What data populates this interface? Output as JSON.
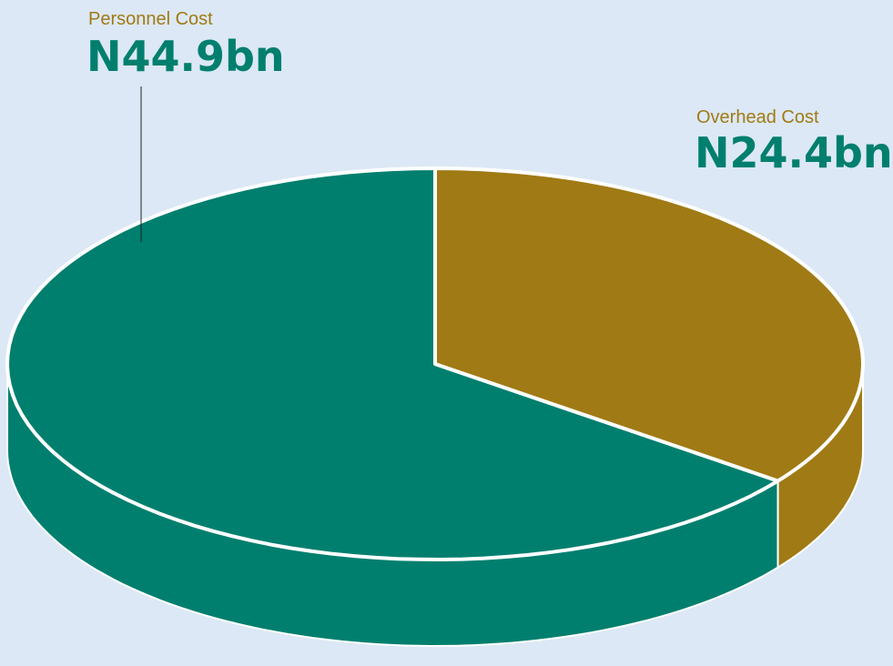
{
  "chart_data": {
    "type": "pie",
    "categories": [
      "Personnel Cost",
      "Overhead Cost"
    ],
    "values": [
      44.9,
      24.4
    ],
    "value_labels": [
      "N44.9bn",
      "N24.4bn"
    ],
    "colors": [
      "#007f6e",
      "#a07a14"
    ]
  }
}
